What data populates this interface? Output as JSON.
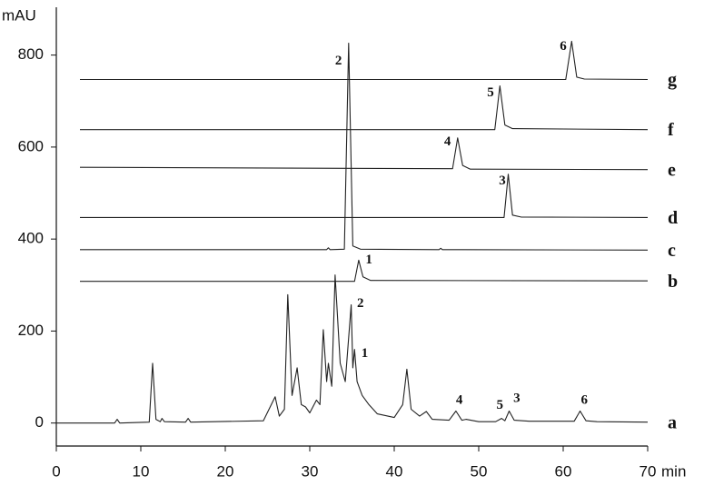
{
  "chart_data": {
    "type": "line",
    "y_label": "mAU",
    "x_label": "min",
    "xlim": [
      0,
      70
    ],
    "xticks": [
      0,
      10,
      20,
      30,
      40,
      50,
      60,
      70
    ],
    "ylim": [
      -50,
      900
    ],
    "yticks": [
      0,
      200,
      400,
      600,
      800
    ],
    "grid": false,
    "series": [
      {
        "name": "a",
        "color": "#222222",
        "x": [
          0,
          6.9,
          7.2,
          7.5,
          11.0,
          11.4,
          11.8,
          12.3,
          12.5,
          12.8,
          15.3,
          15.6,
          15.9,
          24.5,
          25.9,
          26.4,
          27.0,
          27.4,
          27.9,
          28.5,
          29.0,
          29.5,
          30.0,
          30.8,
          31.2,
          31.6,
          32.0,
          32.2,
          32.6,
          33.0,
          33.6,
          34.2,
          34.9,
          35.1,
          35.3,
          35.6,
          36.2,
          37.0,
          38.0,
          40.0,
          41.0,
          41.5,
          42.0,
          43.0,
          43.8,
          44.5,
          46.5,
          47.3,
          48.0,
          48.5,
          50.0,
          52.0,
          52.7,
          53.1,
          53.6,
          54.2,
          56.0,
          61.3,
          62.0,
          62.7,
          64.0,
          70
        ],
        "values": [
          0,
          0,
          8,
          0,
          2,
          130,
          8,
          3,
          10,
          3,
          2,
          10,
          2,
          5,
          57,
          15,
          30,
          279,
          60,
          120,
          40,
          35,
          22,
          50,
          40,
          203,
          90,
          130,
          80,
          322,
          130,
          90,
          257,
          120,
          160,
          90,
          60,
          40,
          20,
          12,
          40,
          117,
          30,
          15,
          25,
          8,
          6,
          26,
          6,
          8,
          3,
          3,
          10,
          5,
          26,
          6,
          4,
          4,
          26,
          5,
          3,
          2
        ]
      },
      {
        "name": "b",
        "color": "#222222",
        "x": [
          2.8,
          35.3,
          35.8,
          36.3,
          37.2,
          70
        ],
        "values": [
          308,
          308,
          354,
          318,
          310,
          309
        ]
      },
      {
        "name": "c",
        "color": "#222222",
        "x": [
          2.8,
          32,
          32.2,
          32.4,
          34.1,
          34.6,
          35.1,
          36,
          45.3,
          45.5,
          45.7,
          70
        ],
        "values": [
          377,
          377,
          381,
          377,
          378,
          826,
          385,
          378,
          377,
          380,
          377,
          376
        ]
      },
      {
        "name": "d",
        "color": "#222222",
        "x": [
          2.8,
          53,
          53.5,
          54,
          55,
          70
        ],
        "values": [
          447,
          447,
          541,
          452,
          448,
          447
        ]
      },
      {
        "name": "e",
        "color": "#222222",
        "x": [
          2.8,
          46.9,
          47.5,
          48.1,
          49,
          70
        ],
        "values": [
          556,
          553,
          620,
          560,
          552,
          551
        ]
      },
      {
        "name": "f",
        "color": "#222222",
        "x": [
          2.8,
          51.9,
          52.5,
          53.1,
          54,
          70
        ],
        "values": [
          638,
          638,
          733,
          648,
          640,
          638
        ]
      },
      {
        "name": "g",
        "color": "#222222",
        "x": [
          2.8,
          60.3,
          61.0,
          61.6,
          62.5,
          70
        ],
        "values": [
          747,
          747,
          830,
          752,
          748,
          747
        ]
      }
    ],
    "annotations": [
      {
        "text": "2",
        "x": 33.4,
        "y": 786
      },
      {
        "text": "6",
        "x": 60.0,
        "y": 818
      },
      {
        "text": "5",
        "x": 51.4,
        "y": 717
      },
      {
        "text": "4",
        "x": 46.3,
        "y": 611
      },
      {
        "text": "3",
        "x": 52.8,
        "y": 526
      },
      {
        "text": "1",
        "x": 37.0,
        "y": 354
      },
      {
        "text": "2",
        "x": 36.0,
        "y": 259
      },
      {
        "text": "1",
        "x": 36.5,
        "y": 150
      },
      {
        "text": "4",
        "x": 47.7,
        "y": 49
      },
      {
        "text": "5",
        "x": 52.5,
        "y": 38
      },
      {
        "text": "3",
        "x": 54.5,
        "y": 53
      },
      {
        "text": "6",
        "x": 62.5,
        "y": 49
      }
    ]
  }
}
